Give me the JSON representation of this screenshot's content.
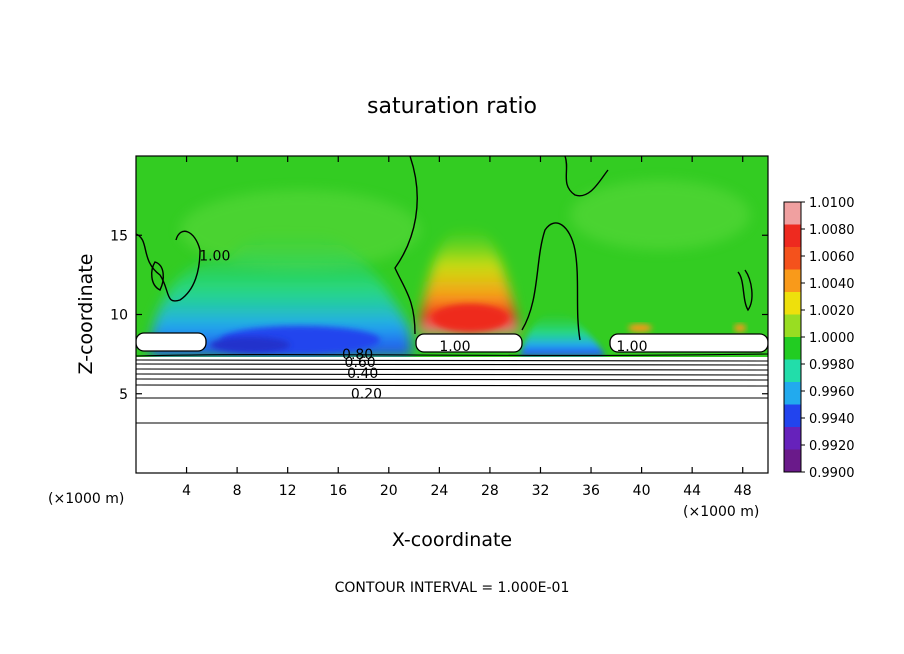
{
  "chart_data": {
    "type": "heatmap",
    "title": "saturation ratio",
    "xlabel": "X-coordinate",
    "ylabel": "Z-coordinate",
    "x_unit": "(×1000 m)",
    "z_unit": "(×1000 m)",
    "xlim": [
      0,
      50
    ],
    "ylim": [
      0,
      20
    ],
    "x_ticks": [
      4,
      8,
      12,
      16,
      20,
      24,
      28,
      32,
      36,
      40,
      44,
      48
    ],
    "y_ticks": [
      5,
      10,
      15
    ],
    "colorbar": {
      "range": [
        0.99,
        1.01
      ],
      "labels": [
        "1.0100",
        "1.0080",
        "1.0060",
        "1.0040",
        "1.0020",
        "1.0000",
        "0.9980",
        "0.9960",
        "0.9940",
        "0.9920",
        "0.9900"
      ],
      "colors": [
        "#f0a0a0",
        "#ee2a1f",
        "#f4521c",
        "#f99a1a",
        "#eee00c",
        "#99dd22",
        "#22cc22",
        "#22ddaa",
        "#22aaee",
        "#2244ee",
        "#6622bb",
        "#6a1a8a"
      ]
    },
    "contour_labels": [
      {
        "value": "1.00",
        "x": 5,
        "z": 13.4
      },
      {
        "value": "0.80",
        "x": 16.3,
        "z": 7.2
      },
      {
        "value": "0.60",
        "x": 16.5,
        "z": 6.7
      },
      {
        "value": "0.40",
        "x": 16.7,
        "z": 6.0
      },
      {
        "value": "0.20",
        "x": 17.0,
        "z": 4.7
      },
      {
        "value": "1.00",
        "x": 24.0,
        "z": 7.7
      },
      {
        "value": "1.00",
        "x": 38.0,
        "z": 7.7
      }
    ],
    "footer": "CONTOUR INTERVAL = 1.000E-01"
  }
}
